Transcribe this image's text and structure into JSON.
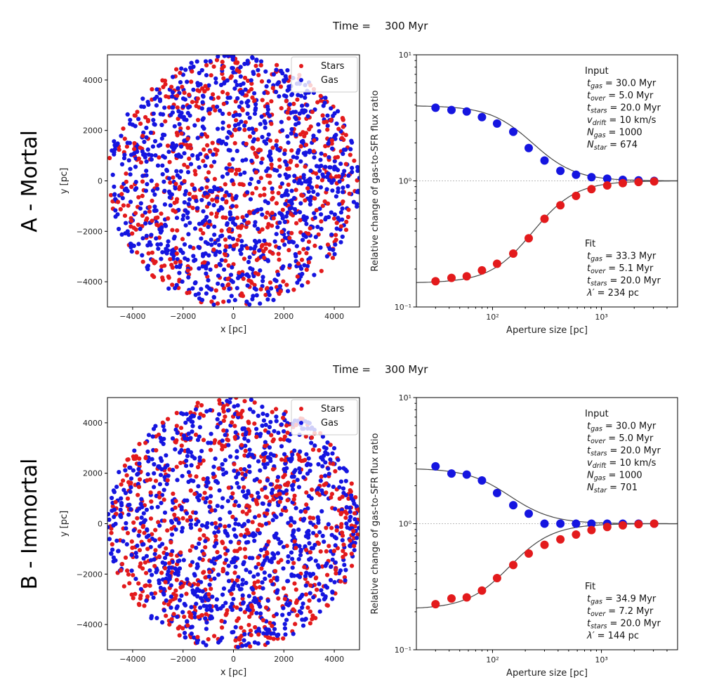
{
  "chart_data": [
    {
      "panel_label": "A - Mortal",
      "time_label": "Time =",
      "time_value": "300 Myr",
      "scatter": {
        "type": "scatter",
        "xlabel": "x [pc]",
        "ylabel": "y [pc]",
        "xlim": [
          -5000,
          5000
        ],
        "ylim": [
          -5000,
          5000
        ],
        "xticks": [
          -4000,
          -2000,
          0,
          2000,
          4000
        ],
        "yticks": [
          -4000,
          -2000,
          0,
          2000,
          4000
        ],
        "region_radius": 5000,
        "legend_position": "top-right",
        "series": [
          {
            "name": "Stars",
            "color": "#e31a1c",
            "count": 674
          },
          {
            "name": "Gas",
            "color": "#1515e0",
            "count": 1000
          }
        ]
      },
      "ratio": {
        "type": "scatter",
        "xlabel": "Aperture size [pc]",
        "ylabel": "Relative change of gas-to-SFR flux ratio",
        "xscale": "log",
        "yscale": "log",
        "xlim": [
          20,
          5000
        ],
        "ylim": [
          0.1,
          10
        ],
        "xticks": [
          {
            "value": 100,
            "label": "10²"
          },
          {
            "value": 1000,
            "label": "10³"
          }
        ],
        "yticks": [
          {
            "value": 0.1,
            "label": "10⁻¹"
          },
          {
            "value": 1,
            "label": "10⁰"
          },
          {
            "value": 10,
            "label": "10¹"
          }
        ],
        "x": [
          30,
          42,
          58,
          80,
          110,
          155,
          215,
          300,
          420,
          585,
          810,
          1130,
          1570,
          2190,
          3050
        ],
        "series": [
          {
            "name": "gas",
            "color": "#1515e0",
            "values": [
              3.8,
              3.65,
              3.55,
              3.2,
              2.85,
              2.45,
              1.82,
              1.45,
              1.2,
              1.12,
              1.07,
              1.04,
              1.02,
              1.01,
              1.0
            ]
          },
          {
            "name": "stars",
            "color": "#e31a1c",
            "values": [
              0.16,
              0.17,
              0.175,
              0.195,
              0.22,
              0.265,
              0.35,
              0.5,
              0.64,
              0.76,
              0.86,
              0.92,
              0.96,
              0.98,
              0.99
            ]
          }
        ],
        "fit": {
          "t_gas": 33.3,
          "t_over": 5.1,
          "lambda": 234,
          "high_asym": 3.95,
          "low_asym": 0.155
        },
        "input_block": {
          "title": "Input",
          "lines": [
            {
              "sym": "t",
              "sub": "gas",
              "val": "= 30.0 Myr"
            },
            {
              "sym": "t",
              "sub": "over",
              "val": "= 5.0 Myr"
            },
            {
              "sym": "t",
              "sub": "stars",
              "val": "= 20.0 Myr"
            },
            {
              "sym": "v",
              "sub": "drift",
              "val": "= 10 km/s"
            },
            {
              "sym": "N",
              "sub": "gas",
              "val": "= 1000"
            },
            {
              "sym": "N",
              "sub": "star",
              "val": "= 674"
            }
          ]
        },
        "fit_block": {
          "title": "Fit",
          "lines": [
            {
              "sym": "t",
              "sub": "gas",
              "val": "= 33.3 Myr"
            },
            {
              "sym": "t",
              "sub": "over",
              "val": "= 5.1 Myr"
            },
            {
              "sym": "t",
              "sub": "stars",
              "val": "= 20.0 Myr"
            },
            {
              "sym": "λ′",
              "sub": "",
              "val": "= 234 pc"
            }
          ]
        }
      }
    },
    {
      "panel_label": "B - Immortal",
      "time_label": "Time =",
      "time_value": "300 Myr",
      "scatter": {
        "type": "scatter",
        "xlabel": "x [pc]",
        "ylabel": "y [pc]",
        "xlim": [
          -5000,
          5000
        ],
        "ylim": [
          -5000,
          5000
        ],
        "xticks": [
          -4000,
          -2000,
          0,
          2000,
          4000
        ],
        "yticks": [
          -4000,
          -2000,
          0,
          2000,
          4000
        ],
        "region_radius": 5000,
        "legend_position": "top-right",
        "series": [
          {
            "name": "Stars",
            "color": "#e31a1c",
            "count": 701
          },
          {
            "name": "Gas",
            "color": "#1515e0",
            "count": 1000
          }
        ]
      },
      "ratio": {
        "type": "scatter",
        "xlabel": "Aperture size [pc]",
        "ylabel": "Relative change of gas-to-SFR flux ratio",
        "xscale": "log",
        "yscale": "log",
        "xlim": [
          20,
          5000
        ],
        "ylim": [
          0.1,
          10
        ],
        "xticks": [
          {
            "value": 100,
            "label": "10²"
          },
          {
            "value": 1000,
            "label": "10³"
          }
        ],
        "yticks": [
          {
            "value": 0.1,
            "label": "10⁻¹"
          },
          {
            "value": 1,
            "label": "10⁰"
          },
          {
            "value": 10,
            "label": "10¹"
          }
        ],
        "x": [
          30,
          42,
          58,
          80,
          110,
          155,
          215,
          300,
          420,
          585,
          810,
          1130,
          1570,
          2190,
          3050
        ],
        "series": [
          {
            "name": "gas",
            "color": "#1515e0",
            "values": [
              2.85,
              2.5,
              2.45,
              2.2,
              1.75,
              1.4,
              1.2,
              1.0,
              1.0,
              1.0,
              1.0,
              1.0,
              1.0,
              1.0,
              1.0
            ]
          },
          {
            "name": "stars",
            "color": "#e31a1c",
            "values": [
              0.23,
              0.255,
              0.26,
              0.295,
              0.37,
              0.47,
              0.58,
              0.68,
              0.75,
              0.82,
              0.89,
              0.94,
              0.97,
              0.99,
              1.0
            ]
          }
        ],
        "fit": {
          "t_gas": 34.9,
          "t_over": 7.2,
          "lambda": 144,
          "high_asym": 2.75,
          "low_asym": 0.21
        },
        "input_block": {
          "title": "Input",
          "lines": [
            {
              "sym": "t",
              "sub": "gas",
              "val": "= 30.0 Myr"
            },
            {
              "sym": "t",
              "sub": "over",
              "val": "= 5.0 Myr"
            },
            {
              "sym": "t",
              "sub": "stars",
              "val": "= 20.0 Myr"
            },
            {
              "sym": "v",
              "sub": "drift",
              "val": "= 10 km/s"
            },
            {
              "sym": "N",
              "sub": "gas",
              "val": "= 1000"
            },
            {
              "sym": "N",
              "sub": "star",
              "val": "= 701"
            }
          ]
        },
        "fit_block": {
          "title": "Fit",
          "lines": [
            {
              "sym": "t",
              "sub": "gas",
              "val": "= 34.9 Myr"
            },
            {
              "sym": "t",
              "sub": "over",
              "val": "= 7.2 Myr"
            },
            {
              "sym": "t",
              "sub": "stars",
              "val": "= 20.0 Myr"
            },
            {
              "sym": "λ′",
              "sub": "",
              "val": "= 144 pc"
            }
          ]
        }
      }
    }
  ]
}
